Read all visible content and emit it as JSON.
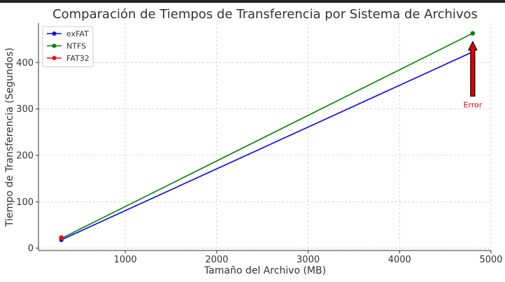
{
  "chart_data": {
    "type": "line",
    "title": "Comparación de Tiempos de Transferencia por Sistema de Archivos",
    "xlabel": "Tamaño del Archivo (MB)",
    "ylabel": "Tiempo de Transferencia (Segundos)",
    "xlim": [
      50,
      5000
    ],
    "ylim": [
      -5,
      485
    ],
    "xticks": [
      1000,
      2000,
      3000,
      4000,
      5000
    ],
    "yticks": [
      0,
      100,
      200,
      300,
      400
    ],
    "grid": true,
    "legend_position": "top-left",
    "series": [
      {
        "name": "exFAT",
        "color": "#0000ff",
        "x": [
          300,
          4800
        ],
        "y": [
          18,
          423
        ]
      },
      {
        "name": "NTFS",
        "color": "#008000",
        "x": [
          300,
          4800
        ],
        "y": [
          21,
          463
        ]
      },
      {
        "name": "FAT32",
        "color": "#ff0000",
        "x": [
          300
        ],
        "y": [
          23
        ]
      }
    ],
    "annotation": {
      "text": "Error",
      "color": "#e00000",
      "text_x": 4800,
      "text_y": 305,
      "arrow_to_x": 4800,
      "arrow_to_y": 445
    }
  }
}
